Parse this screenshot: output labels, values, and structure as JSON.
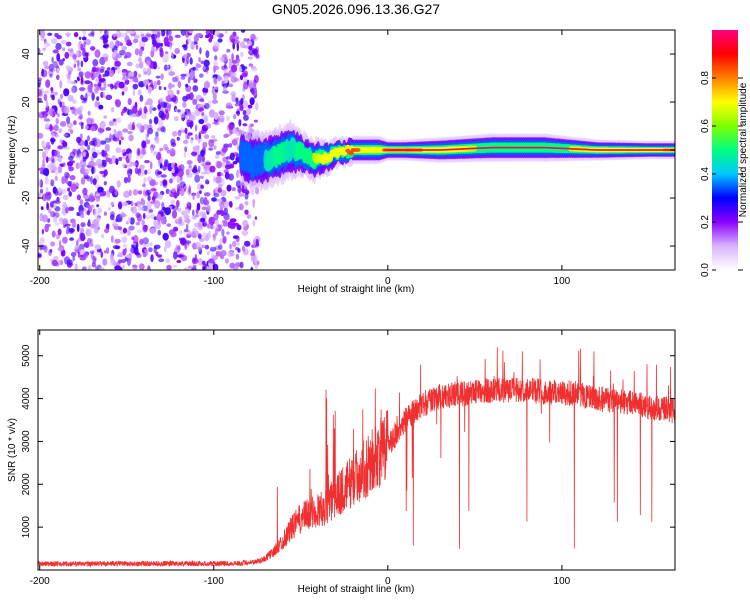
{
  "title": "GN05.2026.096.13.36.G27",
  "chart_data": [
    {
      "type": "heatmap",
      "title": "GN05.2026.096.13.36.G27",
      "xlabel": "Height of straight line (km)",
      "ylabel": "Frequency (Hz)",
      "xlim": [
        -201,
        165
      ],
      "ylim": [
        -50,
        50
      ],
      "xticks": [
        -200,
        -100,
        0,
        100
      ],
      "yticks": [
        -40,
        -20,
        0,
        20,
        40
      ],
      "xtick_labels": [
        "-200",
        "-100",
        "0",
        "100"
      ],
      "ytick_labels": [
        "-40",
        "-20",
        "0",
        "20",
        "40"
      ],
      "noise_region_x": [
        -201,
        -77
      ],
      "ridge": {
        "x": [
          -84,
          -78,
          -70,
          -62,
          -55,
          -48,
          -42,
          -35,
          -28,
          -20,
          -12,
          -5,
          0,
          10,
          30,
          60,
          90,
          120,
          150,
          165
        ],
        "freq": [
          -3,
          -5,
          -4,
          -2,
          0,
          -2,
          -4,
          -3,
          -1,
          0,
          0,
          0,
          0,
          0,
          0,
          1,
          1,
          0,
          0,
          0
        ],
        "amp": [
          0.35,
          0.4,
          0.45,
          0.5,
          0.45,
          0.55,
          0.65,
          0.7,
          0.8,
          0.85,
          0.8,
          0.75,
          0.9,
          0.9,
          0.75,
          0.6,
          0.6,
          0.7,
          0.8,
          0.85
        ],
        "width_hz": [
          4,
          4,
          4,
          4,
          4,
          3,
          3,
          2.5,
          2,
          2,
          2,
          2,
          1.5,
          1.5,
          1.8,
          2,
          2,
          1.5,
          1.3,
          1.3
        ]
      },
      "colorbar": {
        "label": "Normalized spectral amplitude",
        "range": [
          0.0,
          1.0
        ],
        "ticks": [
          0.0,
          0.2,
          0.4,
          0.6,
          0.8
        ],
        "tick_labels": [
          "0.0",
          "0.2",
          "0.4",
          "0.6",
          "0.8"
        ],
        "stops": [
          "#ffffff",
          "#d8b4ff",
          "#8b00ff",
          "#0000ff",
          "#00c8ff",
          "#00ff80",
          "#7fff00",
          "#ffff00",
          "#ff8000",
          "#ff0000",
          "#ff0080"
        ]
      }
    },
    {
      "type": "line",
      "xlabel": "Height of straight line (km)",
      "ylabel": "SNR (10 * v/v)",
      "xlim": [
        -201,
        165
      ],
      "ylim": [
        0,
        5600
      ],
      "xticks": [
        -200,
        -100,
        0,
        100
      ],
      "yticks": [
        1000,
        2000,
        3000,
        4000,
        5000
      ],
      "xtick_labels": [
        "-200",
        "-100",
        "0",
        "100"
      ],
      "ytick_labels": [
        "1000",
        "2000",
        "3000",
        "4000",
        "5000"
      ],
      "color": "#f03030",
      "series": [
        {
          "name": "SNR",
          "x": [
            -201,
            -180,
            -160,
            -140,
            -120,
            -100,
            -85,
            -75,
            -70,
            -65,
            -60,
            -55,
            -50,
            -45,
            -40,
            -35,
            -30,
            -25,
            -20,
            -15,
            -10,
            -5,
            0,
            5,
            10,
            15,
            20,
            25,
            30,
            40,
            50,
            60,
            70,
            80,
            90,
            100,
            110,
            120,
            130,
            140,
            150,
            160,
            165
          ],
          "y": [
            150,
            140,
            150,
            145,
            150,
            150,
            155,
            200,
            280,
            450,
            700,
            1000,
            1200,
            1300,
            1400,
            1500,
            1700,
            1900,
            2100,
            2300,
            2500,
            2700,
            2900,
            3200,
            3500,
            3700,
            3850,
            3950,
            4050,
            4100,
            4150,
            4200,
            4200,
            4200,
            4150,
            4150,
            4100,
            4000,
            3950,
            3900,
            3800,
            3750,
            3700
          ]
        }
      ]
    }
  ]
}
